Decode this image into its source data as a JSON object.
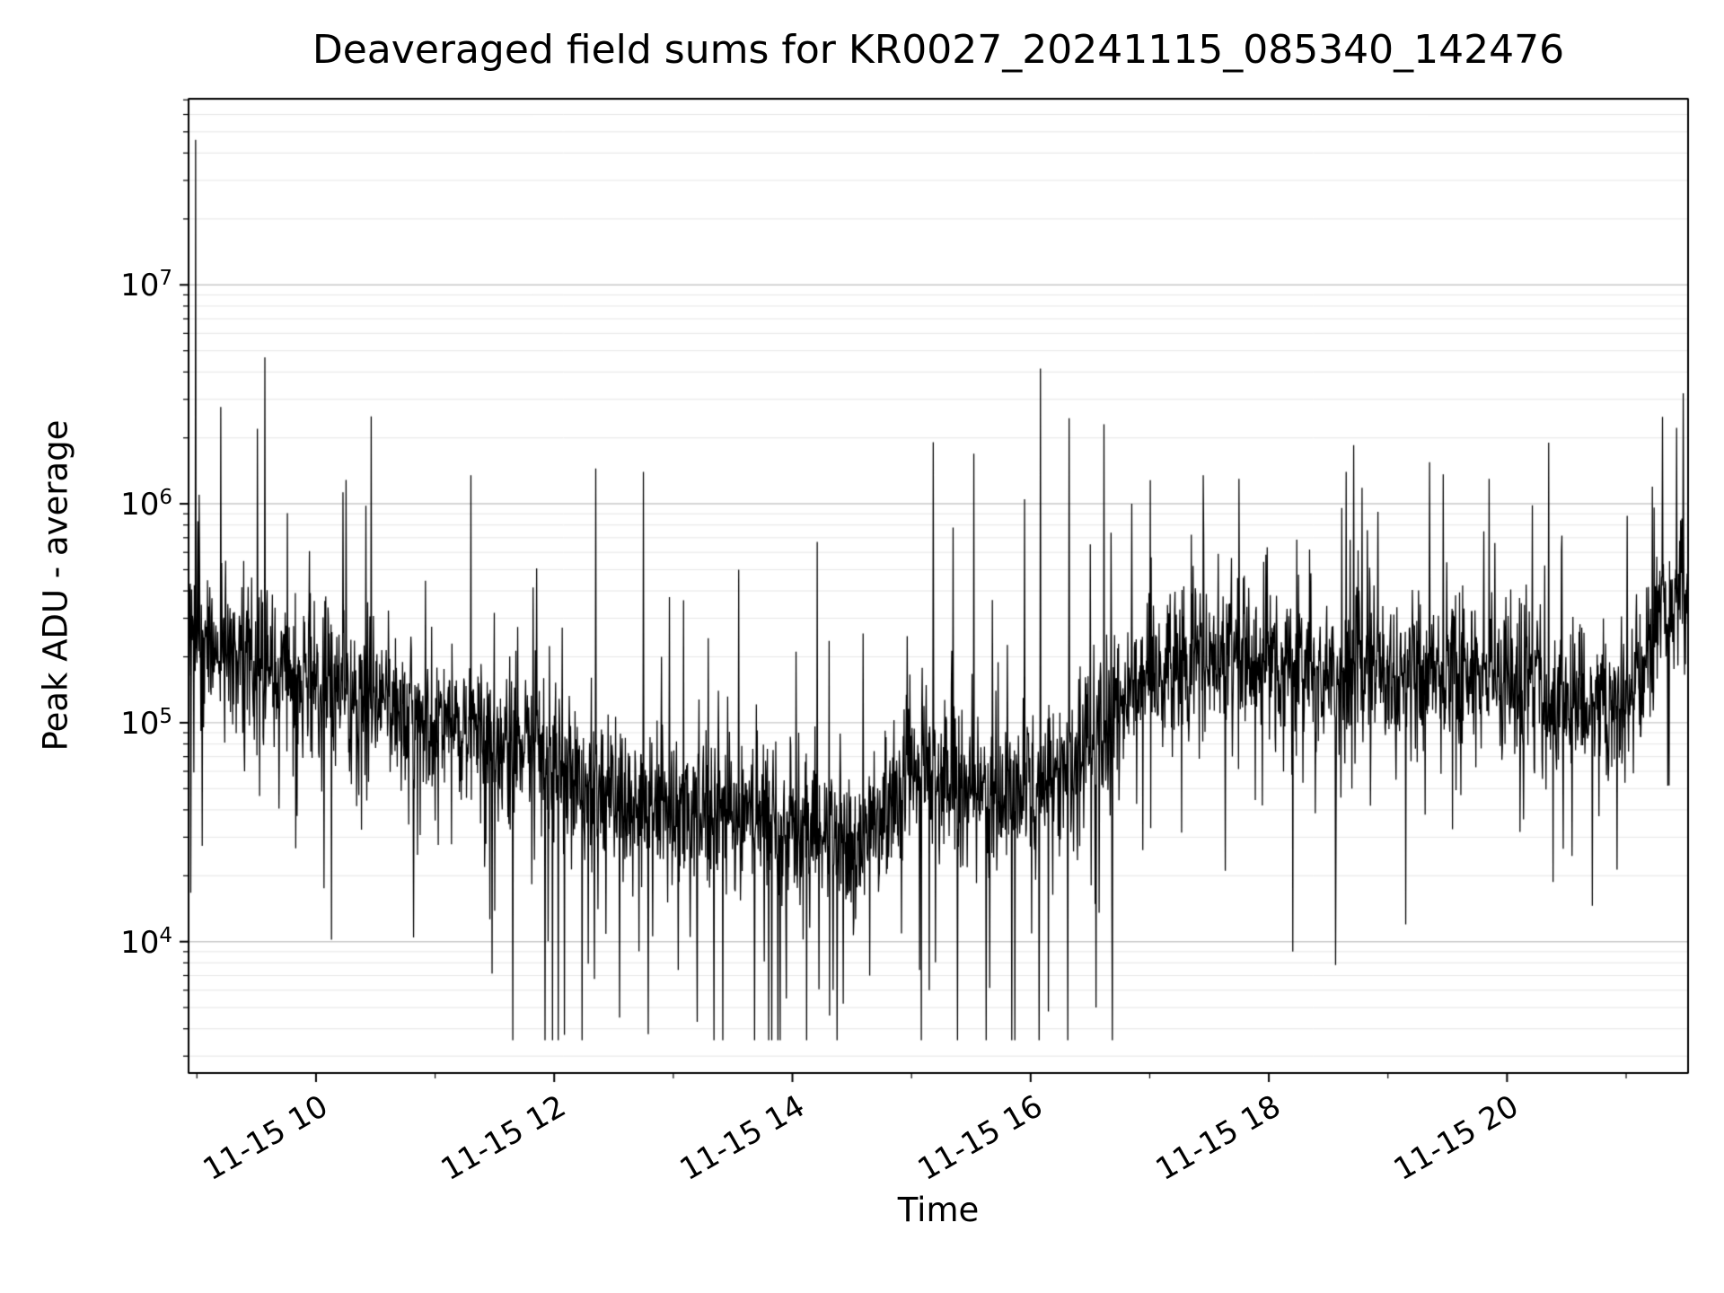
{
  "figure": {
    "title": "Deaveraged field sums for KR0027_20241115_085340_142476",
    "xlabel": "Time",
    "ylabel": "Peak ADU - average"
  },
  "chart_data": {
    "type": "line",
    "title": "Deaveraged field sums for KR0027_20241115_085340_142476",
    "xlabel": "Time",
    "ylabel": "Peak ADU - average",
    "series_name": "Peak ADU - average",
    "line_color": "#000000",
    "background": "#ffffff",
    "grid_major_color": "#c9c9c9",
    "grid_minor_color": "#e6e6e6",
    "grid": "horizontal major+minor",
    "legend": "none",
    "y_scale": "log",
    "x_unit": "hours on 11-15",
    "x_range": [
      8.93,
      21.52
    ],
    "y_range_log10": [
      3.4,
      7.85
    ],
    "x_ticks": [
      {
        "t": 10,
        "label": "11-15 10"
      },
      {
        "t": 12,
        "label": "11-15 12"
      },
      {
        "t": 14,
        "label": "11-15 14"
      },
      {
        "t": 16,
        "label": "11-15 16"
      },
      {
        "t": 18,
        "label": "11-15 18"
      },
      {
        "t": 20,
        "label": "11-15 20"
      }
    ],
    "x_tick_label_rotation_deg": 30,
    "y_ticks_exponents": [
      4,
      5,
      6,
      7
    ],
    "n_points": 3400,
    "seed": 20241115,
    "base_sigma": 0.17,
    "envelope_log10_median": [
      [
        8.93,
        5.45
      ],
      [
        9.3,
        5.3
      ],
      [
        9.8,
        5.25
      ],
      [
        10.3,
        5.1
      ],
      [
        10.8,
        5.02
      ],
      [
        11.3,
        4.98
      ],
      [
        11.8,
        4.88
      ],
      [
        12.3,
        4.72
      ],
      [
        12.8,
        4.6
      ],
      [
        13.3,
        4.58
      ],
      [
        13.8,
        4.52
      ],
      [
        14.3,
        4.48
      ],
      [
        14.7,
        4.45
      ],
      [
        15.0,
        4.78
      ],
      [
        15.4,
        4.72
      ],
      [
        15.8,
        4.7
      ],
      [
        16.2,
        4.72
      ],
      [
        16.6,
        4.95
      ],
      [
        17.0,
        5.22
      ],
      [
        17.5,
        5.3
      ],
      [
        18.0,
        5.28
      ],
      [
        18.5,
        5.22
      ],
      [
        19.0,
        5.2
      ],
      [
        19.5,
        5.25
      ],
      [
        20.0,
        5.2
      ],
      [
        20.4,
        5.1
      ],
      [
        20.8,
        5.05
      ],
      [
        21.1,
        5.15
      ],
      [
        21.35,
        5.55
      ],
      [
        21.52,
        5.62
      ]
    ],
    "feature_spikes": [
      [
        8.99,
        46000000
      ],
      [
        9.02,
        1100000
      ],
      [
        11.3,
        1350000
      ],
      [
        12.35,
        1450000
      ],
      [
        12.75,
        1400000
      ],
      [
        13.55,
        500000
      ],
      [
        15.35,
        780000
      ],
      [
        15.95,
        1050000
      ],
      [
        16.85,
        1000000
      ],
      [
        17.45,
        1350000
      ],
      [
        17.75,
        1300000
      ],
      [
        18.65,
        1400000
      ],
      [
        19.35,
        1550000
      ],
      [
        19.85,
        1300000
      ],
      [
        20.35,
        1900000
      ],
      [
        21.48,
        3200000
      ],
      [
        12.55,
        4500
      ],
      [
        13.2,
        4300
      ],
      [
        13.95,
        5500
      ],
      [
        14.65,
        7000
      ],
      [
        15.15,
        6000
      ],
      [
        16.15,
        4800
      ],
      [
        16.55,
        5000
      ],
      [
        18.2,
        9000
      ],
      [
        19.15,
        12000
      ]
    ]
  }
}
